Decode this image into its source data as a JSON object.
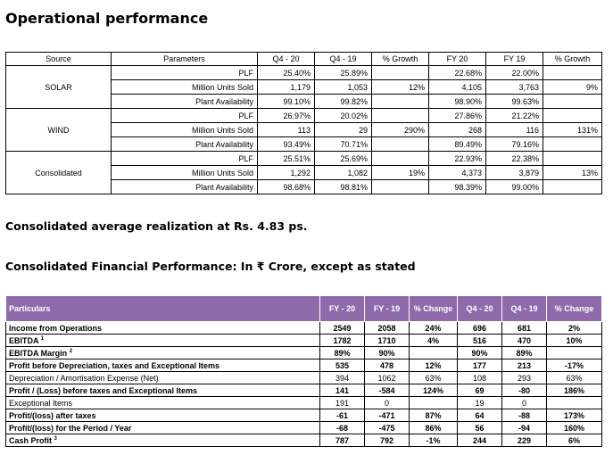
{
  "headings": {
    "ops_title": "Operational performance",
    "realization": "Consolidated average realization at Rs. 4.83 ps.",
    "fin_title": "Consolidated Financial Performance: In ₹ Crore, except as stated"
  },
  "ops_table": {
    "headers": [
      "Source",
      "Parameters",
      "Q4 - 20",
      "Q4 - 19",
      "% Growth",
      "FY 20",
      "FY 19",
      "% Growth"
    ],
    "groups": [
      {
        "source": "SOLAR",
        "rows": [
          {
            "param": "PLF",
            "q420": "25.40%",
            "q419": "25.89%",
            "qg": "",
            "fy20": "22.68%",
            "fy19": "22.00%",
            "fyg": ""
          },
          {
            "param": "Million Units Sold",
            "q420": "1,179",
            "q419": "1,053",
            "qg": "12%",
            "fy20": "4,105",
            "fy19": "3,763",
            "fyg": "9%"
          },
          {
            "param": "Plant Availability",
            "q420": "99.10%",
            "q419": "99.82%",
            "qg": "",
            "fy20": "98.90%",
            "fy19": "99.63%",
            "fyg": ""
          }
        ]
      },
      {
        "source": "WIND",
        "rows": [
          {
            "param": "PLF",
            "q420": "26.97%",
            "q419": "20.02%",
            "qg": "",
            "fy20": "27.86%",
            "fy19": "21.22%",
            "fyg": ""
          },
          {
            "param": "Million Units Sold",
            "q420": "113",
            "q419": "29",
            "qg": "290%",
            "fy20": "268",
            "fy19": "116",
            "fyg": "131%"
          },
          {
            "param": "Plant Availability",
            "q420": "93.49%",
            "q419": "70.71%",
            "qg": "",
            "fy20": "89.49%",
            "fy19": "79.16%",
            "fyg": ""
          }
        ]
      },
      {
        "source": "Consolidated",
        "rows": [
          {
            "param": "PLF",
            "q420": "25.51%",
            "q419": "25.69%",
            "qg": "",
            "fy20": "22.93%",
            "fy19": "22.38%",
            "fyg": ""
          },
          {
            "param": "Million Units Sold",
            "q420": "1,292",
            "q419": "1,082",
            "qg": "19%",
            "fy20": "4,373",
            "fy19": "3,879",
            "fyg": "13%"
          },
          {
            "param": "Plant Availability",
            "q420": "98.68%",
            "q419": "98.81%",
            "qg": "",
            "fy20": "98.39%",
            "fy19": "99.00%",
            "fyg": ""
          }
        ]
      }
    ]
  },
  "fin_table": {
    "headers": [
      "Particulars",
      "FY - 20",
      "FY - 19",
      "% Change",
      "Q4 - 20",
      "Q4 - 19",
      "% Change"
    ],
    "rows": [
      {
        "label": "Income from Operations",
        "sup": "",
        "bold": true,
        "fy20": "2549",
        "fy19": "2058",
        "fyc": "24%",
        "q420": "696",
        "q419": "681",
        "qc": "2%"
      },
      {
        "label": "EBITDA",
        "sup": "1",
        "bold": true,
        "fy20": "1782",
        "fy19": "1710",
        "fyc": "4%",
        "q420": "516",
        "q419": "470",
        "qc": "10%"
      },
      {
        "label": "EBITDA Margin",
        "sup": "2",
        "bold": true,
        "fy20": "89%",
        "fy19": "90%",
        "fyc": "",
        "q420": "90%",
        "q419": "89%",
        "qc": ""
      },
      {
        "label": "Profit before Depreciation, taxes and Exceptional Items",
        "sup": "",
        "bold": true,
        "fy20": "535",
        "fy19": "478",
        "fyc": "12%",
        "q420": "177",
        "q419": "213",
        "qc": "-17%"
      },
      {
        "label": "Depreciation / Amortisation Expense (Net)",
        "sup": "",
        "bold": false,
        "fy20": "394",
        "fy19": "1062",
        "fyc": "63%",
        "q420": "108",
        "q419": "293",
        "qc": "63%"
      },
      {
        "label": "Profit / (Loss) before taxes and Exceptional Items",
        "sup": "",
        "bold": true,
        "fy20": "141",
        "fy19": "-584",
        "fyc": "124%",
        "q420": "69",
        "q419": "-80",
        "qc": "186%"
      },
      {
        "label": "Exceptional Items",
        "sup": "",
        "bold": false,
        "fy20": "191",
        "fy19": "0",
        "fyc": "",
        "q420": "19",
        "q419": "0",
        "qc": ""
      },
      {
        "label": "Profit/(loss) after taxes",
        "sup": "",
        "bold": true,
        "fy20": "-61",
        "fy19": "-471",
        "fyc": "87%",
        "q420": "64",
        "q419": "-88",
        "qc": "173%"
      },
      {
        "label": "Profit/(loss) for the Period / Year",
        "sup": "",
        "bold": true,
        "fy20": "-68",
        "fy19": "-475",
        "fyc": "86%",
        "q420": "56",
        "q419": "-94",
        "qc": "160%"
      },
      {
        "label": "Cash Profit",
        "sup": "3",
        "bold": true,
        "fy20": "787",
        "fy19": "792",
        "fyc": "-1%",
        "q420": "244",
        "q419": "229",
        "qc": "6%"
      }
    ]
  }
}
